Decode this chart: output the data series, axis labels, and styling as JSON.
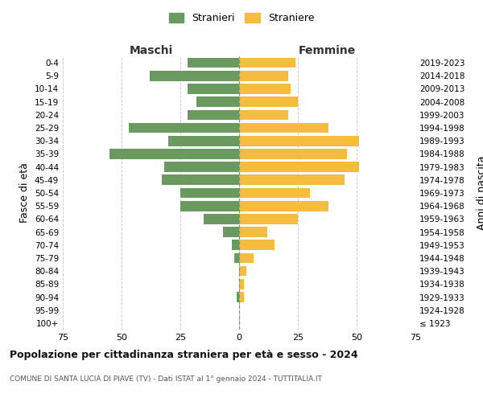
{
  "age_groups": [
    "100+",
    "95-99",
    "90-94",
    "85-89",
    "80-84",
    "75-79",
    "70-74",
    "65-69",
    "60-64",
    "55-59",
    "50-54",
    "45-49",
    "40-44",
    "35-39",
    "30-34",
    "25-29",
    "20-24",
    "15-19",
    "10-14",
    "5-9",
    "0-4"
  ],
  "birth_years": [
    "≤ 1923",
    "1924-1928",
    "1929-1933",
    "1934-1938",
    "1939-1943",
    "1944-1948",
    "1949-1953",
    "1954-1958",
    "1959-1963",
    "1964-1968",
    "1969-1973",
    "1974-1978",
    "1979-1983",
    "1984-1988",
    "1989-1993",
    "1994-1998",
    "1999-2003",
    "2004-2008",
    "2009-2013",
    "2014-2018",
    "2019-2023"
  ],
  "males": [
    0,
    0,
    1,
    0,
    0,
    2,
    3,
    7,
    15,
    25,
    25,
    33,
    32,
    55,
    30,
    47,
    22,
    18,
    22,
    38,
    22
  ],
  "females": [
    0,
    0,
    2,
    2,
    3,
    6,
    15,
    12,
    25,
    38,
    30,
    45,
    51,
    46,
    51,
    38,
    21,
    25,
    22,
    21,
    24
  ],
  "male_color": "#6a9a5f",
  "female_color": "#f5bc42",
  "background_color": "#ffffff",
  "grid_color": "#cccccc",
  "xlim": 75,
  "title": "Popolazione per cittadinanza straniera per età e sesso - 2024",
  "subtitle": "COMUNE DI SANTA LUCIA DI PIAVE (TV) - Dati ISTAT al 1° gennaio 2024 - TUTTITALIA.IT",
  "ylabel_left": "Fasce di età",
  "ylabel_right": "Anni di nascita",
  "legend_male": "Stranieri",
  "legend_female": "Straniere",
  "maschi_label": "Maschi",
  "femmine_label": "Femmine"
}
